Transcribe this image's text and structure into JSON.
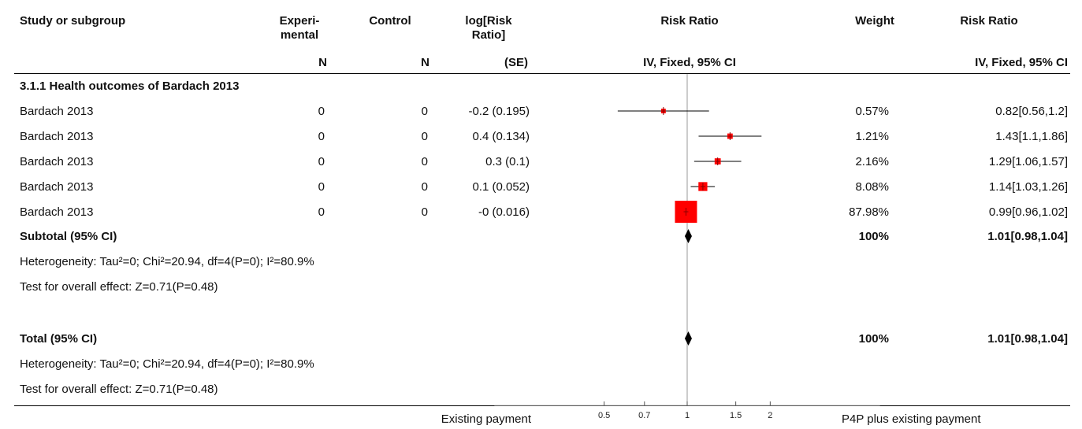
{
  "header": {
    "study": "Study or subgroup",
    "experimental_line1": "Experi-",
    "experimental_line2": "mental",
    "control": "Control",
    "logrr_line1": "log[Risk",
    "logrr_line2": "Ratio]",
    "forest": "Risk Ratio",
    "weight": "Weight",
    "rr": "Risk Ratio",
    "sub_exp": "N",
    "sub_ctrl": "N",
    "sub_logrr": "(SE)",
    "sub_forest": "IV, Fixed, 95% CI",
    "sub_rr": "IV, Fixed, 95% CI"
  },
  "subgroup_title": "3.1.1 Health outcomes of Bardach 2013",
  "studies": [
    {
      "name": "Bardach 2013",
      "exp_n": "0",
      "ctrl_n": "0",
      "logrr_se": "-0.2 (0.195)",
      "weight": "0.57%",
      "rr_text": "0.82[0.56,1.2]"
    },
    {
      "name": "Bardach 2013",
      "exp_n": "0",
      "ctrl_n": "0",
      "logrr_se": "0.4 (0.134)",
      "weight": "1.21%",
      "rr_text": "1.43[1.1,1.86]"
    },
    {
      "name": "Bardach 2013",
      "exp_n": "0",
      "ctrl_n": "0",
      "logrr_se": "0.3 (0.1)",
      "weight": "2.16%",
      "rr_text": "1.29[1.06,1.57]"
    },
    {
      "name": "Bardach 2013",
      "exp_n": "0",
      "ctrl_n": "0",
      "logrr_se": "0.1 (0.052)",
      "weight": "8.08%",
      "rr_text": "1.14[1.03,1.26]"
    },
    {
      "name": "Bardach 2013",
      "exp_n": "0",
      "ctrl_n": "0",
      "logrr_se": "-0 (0.016)",
      "weight": "87.98%",
      "rr_text": "0.99[0.96,1.02]"
    }
  ],
  "subtotal": {
    "label": "Subtotal (95% CI)",
    "weight": "100%",
    "rr_text": "1.01[0.98,1.04]",
    "heterogeneity": "Heterogeneity: Tau²=0; Chi²=20.94, df=4(P=0); I²=80.9%",
    "overall": "Test for overall effect: Z=0.71(P=0.48)"
  },
  "total": {
    "label": "Total (95% CI)",
    "weight": "100%",
    "rr_text": "1.01[0.98,1.04]",
    "heterogeneity": "Heterogeneity: Tau²=0; Chi²=20.94, df=4(P=0); I²=80.9%",
    "overall": "Test for overall effect: Z=0.71(P=0.48)"
  },
  "footer": {
    "left_label": "Existing payment",
    "right_label": "P4P plus existing payment"
  },
  "colors": {
    "marker": "#ff0000",
    "marker_center": "#8b0000",
    "line": "#000000"
  },
  "chart_data": {
    "type": "forest",
    "scale": "log",
    "x_ticks": [
      0.5,
      0.7,
      1,
      1.5,
      2
    ],
    "xlim": [
      0.2,
      5
    ],
    "studies": [
      {
        "rr": 0.82,
        "lo": 0.56,
        "hi": 1.2,
        "weight": 0.57
      },
      {
        "rr": 1.43,
        "lo": 1.1,
        "hi": 1.86,
        "weight": 1.21
      },
      {
        "rr": 1.29,
        "lo": 1.06,
        "hi": 1.57,
        "weight": 2.16
      },
      {
        "rr": 1.14,
        "lo": 1.03,
        "hi": 1.26,
        "weight": 8.08
      },
      {
        "rr": 0.99,
        "lo": 0.96,
        "hi": 1.02,
        "weight": 87.98
      }
    ],
    "subtotal": {
      "rr": 1.01,
      "lo": 0.98,
      "hi": 1.04
    },
    "total": {
      "rr": 1.01,
      "lo": 0.98,
      "hi": 1.04
    }
  }
}
